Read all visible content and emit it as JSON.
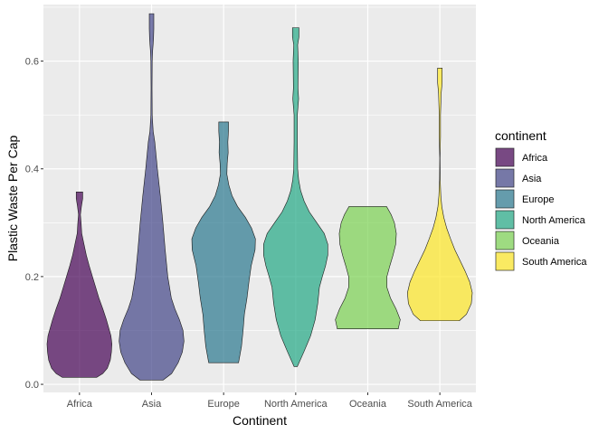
{
  "chart_data": {
    "type": "violin",
    "xlabel": "Continent",
    "ylabel": "Plastic Waste Per Cap",
    "ylim": [
      -0.015,
      0.705
    ],
    "y_ticks": [
      0.0,
      0.2,
      0.4,
      0.6
    ],
    "y_tick_labels": [
      "0.0",
      "0.2",
      "0.4",
      "0.6"
    ],
    "grid": true,
    "legend": {
      "title": "continent",
      "position": "right"
    },
    "categories": [
      "Africa",
      "Asia",
      "Europe",
      "North America",
      "Oceania",
      "South America"
    ],
    "series": [
      {
        "name": "Africa",
        "color": "#440154",
        "min": 0.013,
        "max": 0.357,
        "profile": [
          [
            0.013,
            0.53
          ],
          [
            0.02,
            0.72
          ],
          [
            0.03,
            0.86
          ],
          [
            0.045,
            0.95
          ],
          [
            0.06,
            0.985
          ],
          [
            0.075,
            1.0
          ],
          [
            0.09,
            0.97
          ],
          [
            0.105,
            0.9
          ],
          [
            0.12,
            0.83
          ],
          [
            0.14,
            0.72
          ],
          [
            0.16,
            0.6
          ],
          [
            0.18,
            0.5
          ],
          [
            0.2,
            0.4
          ],
          [
            0.22,
            0.3
          ],
          [
            0.24,
            0.21
          ],
          [
            0.26,
            0.14
          ],
          [
            0.28,
            0.07
          ],
          [
            0.3,
            0.05
          ],
          [
            0.315,
            0.03
          ],
          [
            0.33,
            0.06
          ],
          [
            0.345,
            0.1
          ],
          [
            0.357,
            0.1
          ]
        ]
      },
      {
        "name": "Asia",
        "color": "#414487",
        "min": 0.008,
        "max": 0.688,
        "profile": [
          [
            0.008,
            0.36
          ],
          [
            0.02,
            0.62
          ],
          [
            0.04,
            0.82
          ],
          [
            0.06,
            0.95
          ],
          [
            0.08,
            1.0
          ],
          [
            0.1,
            0.97
          ],
          [
            0.12,
            0.86
          ],
          [
            0.14,
            0.72
          ],
          [
            0.16,
            0.61
          ],
          [
            0.2,
            0.5
          ],
          [
            0.25,
            0.42
          ],
          [
            0.3,
            0.35
          ],
          [
            0.35,
            0.27
          ],
          [
            0.4,
            0.18
          ],
          [
            0.45,
            0.1
          ],
          [
            0.47,
            0.05
          ],
          [
            0.5,
            0.02
          ],
          [
            0.55,
            0.015
          ],
          [
            0.6,
            0.02
          ],
          [
            0.62,
            0.035
          ],
          [
            0.64,
            0.06
          ],
          [
            0.66,
            0.07
          ],
          [
            0.688,
            0.07
          ]
        ]
      },
      {
        "name": "Europe",
        "color": "#2a788e",
        "min": 0.04,
        "max": 0.487,
        "profile": [
          [
            0.04,
            0.46
          ],
          [
            0.07,
            0.55
          ],
          [
            0.1,
            0.6
          ],
          [
            0.13,
            0.64
          ],
          [
            0.16,
            0.72
          ],
          [
            0.19,
            0.78
          ],
          [
            0.22,
            0.85
          ],
          [
            0.25,
            0.97
          ],
          [
            0.27,
            0.98
          ],
          [
            0.29,
            0.86
          ],
          [
            0.31,
            0.67
          ],
          [
            0.33,
            0.43
          ],
          [
            0.35,
            0.26
          ],
          [
            0.37,
            0.16
          ],
          [
            0.39,
            0.1
          ],
          [
            0.41,
            0.11
          ],
          [
            0.43,
            0.14
          ],
          [
            0.45,
            0.13
          ],
          [
            0.47,
            0.15
          ],
          [
            0.487,
            0.15
          ]
        ]
      },
      {
        "name": "North America",
        "color": "#22a884",
        "min": 0.033,
        "max": 0.662,
        "profile": [
          [
            0.033,
            0.05
          ],
          [
            0.06,
            0.25
          ],
          [
            0.09,
            0.46
          ],
          [
            0.12,
            0.6
          ],
          [
            0.15,
            0.68
          ],
          [
            0.18,
            0.73
          ],
          [
            0.2,
            0.82
          ],
          [
            0.22,
            0.92
          ],
          [
            0.24,
            0.99
          ],
          [
            0.26,
            0.99
          ],
          [
            0.28,
            0.88
          ],
          [
            0.3,
            0.65
          ],
          [
            0.32,
            0.42
          ],
          [
            0.34,
            0.26
          ],
          [
            0.36,
            0.15
          ],
          [
            0.38,
            0.09
          ],
          [
            0.4,
            0.06
          ],
          [
            0.45,
            0.05
          ],
          [
            0.5,
            0.05
          ],
          [
            0.53,
            0.09
          ],
          [
            0.55,
            0.07
          ],
          [
            0.6,
            0.08
          ],
          [
            0.63,
            0.06
          ],
          [
            0.645,
            0.1
          ],
          [
            0.662,
            0.1
          ]
        ]
      },
      {
        "name": "Oceania",
        "color": "#7ad151",
        "min": 0.103,
        "max": 0.33,
        "profile": [
          [
            0.103,
            0.94
          ],
          [
            0.12,
            1.0
          ],
          [
            0.14,
            0.87
          ],
          [
            0.16,
            0.7
          ],
          [
            0.18,
            0.59
          ],
          [
            0.2,
            0.59
          ],
          [
            0.22,
            0.68
          ],
          [
            0.24,
            0.78
          ],
          [
            0.26,
            0.86
          ],
          [
            0.28,
            0.88
          ],
          [
            0.3,
            0.82
          ],
          [
            0.315,
            0.72
          ],
          [
            0.33,
            0.58
          ]
        ]
      },
      {
        "name": "South America",
        "color": "#fde725",
        "min": 0.118,
        "max": 0.587,
        "profile": [
          [
            0.118,
            0.6
          ],
          [
            0.13,
            0.82
          ],
          [
            0.15,
            0.97
          ],
          [
            0.17,
            1.0
          ],
          [
            0.19,
            0.92
          ],
          [
            0.21,
            0.78
          ],
          [
            0.23,
            0.62
          ],
          [
            0.25,
            0.46
          ],
          [
            0.27,
            0.33
          ],
          [
            0.29,
            0.21
          ],
          [
            0.31,
            0.12
          ],
          [
            0.33,
            0.06
          ],
          [
            0.35,
            0.03
          ],
          [
            0.38,
            0.01
          ],
          [
            0.42,
            0.005
          ],
          [
            0.46,
            0.02
          ],
          [
            0.5,
            0.02
          ],
          [
            0.54,
            0.04
          ],
          [
            0.56,
            0.07
          ],
          [
            0.587,
            0.07
          ]
        ]
      }
    ]
  }
}
